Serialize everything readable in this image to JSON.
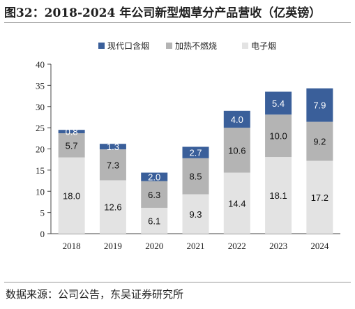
{
  "header": {
    "title": "图32：2018-2024 年公司新型烟草分产品营收（亿英镑）"
  },
  "footer": {
    "source": "数据来源：公司公告，东吴证券研究所"
  },
  "colors": {
    "modern_oral": "#3a5f9a",
    "heated": "#b4b4b4",
    "vapour": "#e3e3e3"
  },
  "chart_data": {
    "type": "bar",
    "stacked": true,
    "categories": [
      "2018",
      "2019",
      "2020",
      "2021",
      "2022",
      "2023",
      "2024"
    ],
    "ylim": [
      0,
      40
    ],
    "yticks": [
      0,
      5,
      10,
      15,
      20,
      25,
      30,
      35,
      40
    ],
    "legend_position": "top-right",
    "series": [
      {
        "name": "电子烟",
        "key": "vapour",
        "values": [
          18.0,
          12.6,
          6.1,
          9.3,
          14.4,
          18.1,
          17.2
        ],
        "labels": [
          "18.0",
          "12.6",
          "6.1",
          "9.3",
          "14.4",
          "18.1",
          "17.2"
        ]
      },
      {
        "name": "加热不燃烧",
        "key": "heated",
        "values": [
          5.7,
          7.3,
          6.3,
          8.5,
          10.6,
          10.0,
          9.2
        ],
        "labels": [
          "5.7",
          "7.3",
          "6.3",
          "8.5",
          "10.6",
          "10.0",
          "9.2"
        ]
      },
      {
        "name": "现代口含烟",
        "key": "modern_oral",
        "values": [
          0.8,
          1.3,
          2.0,
          2.7,
          4.0,
          5.4,
          7.9
        ],
        "labels": [
          "0.8",
          "1.3",
          "2.0",
          "2.7",
          "4.0",
          "5.4",
          "7.9"
        ]
      }
    ]
  }
}
